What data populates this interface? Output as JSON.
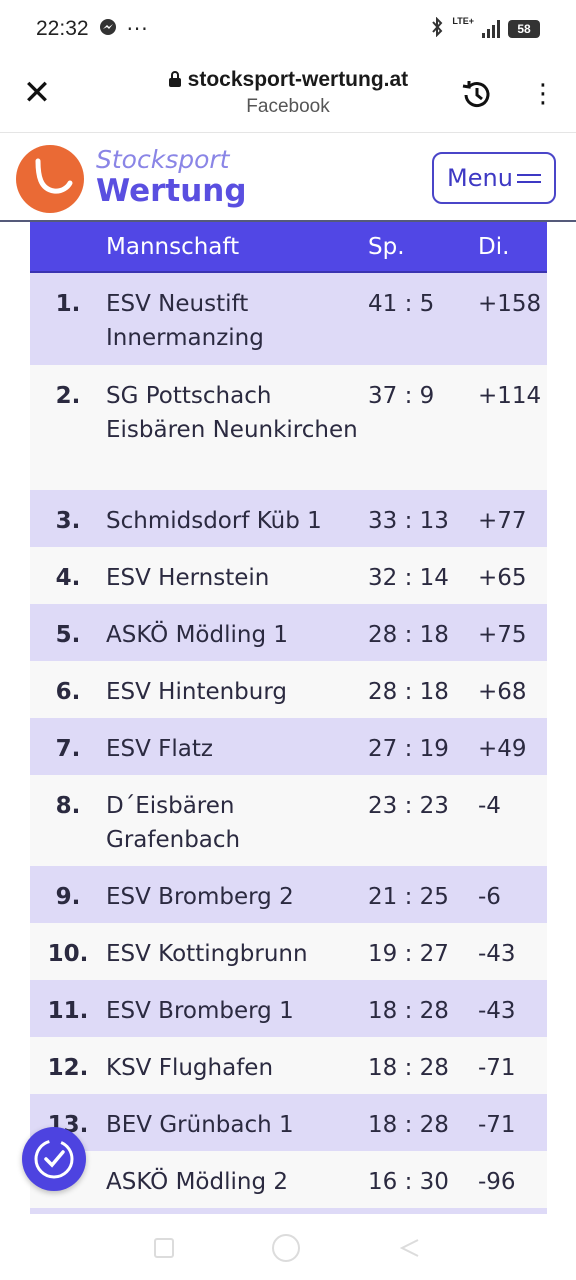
{
  "status_bar": {
    "time": "22:32",
    "notification_icons": [
      "messenger-icon",
      "more-notifications-icon"
    ],
    "network": "LTE+",
    "battery": "58"
  },
  "browser": {
    "url": "stocksport-wertung.at",
    "source": "Facebook"
  },
  "site": {
    "brand_line1": "Stocksport",
    "brand_line2": "Wertung",
    "menu_label": "Menu",
    "colors": {
      "accent": "#5147e5",
      "logo_orange": "#ea6a35",
      "row_tint": "#dedaf7"
    }
  },
  "table": {
    "headers": {
      "rank": "",
      "team": "Mannschaft",
      "games": "Sp.",
      "diff": "Di."
    },
    "rows": [
      {
        "rank": "1.",
        "team": "ESV Neustift Innermanzing",
        "games": "41 : 5",
        "diff": "+158"
      },
      {
        "rank": "2.",
        "team": "SG Pottschach Eisbären Neunkirchen",
        "games": "37 : 9",
        "diff": "+114"
      },
      {
        "rank": "3.",
        "team": "Schmidsdorf Küb 1",
        "games": "33 : 13",
        "diff": "+77"
      },
      {
        "rank": "4.",
        "team": "ESV Hernstein",
        "games": "32 : 14",
        "diff": "+65"
      },
      {
        "rank": "5.",
        "team": "ASKÖ Mödling 1",
        "games": "28 : 18",
        "diff": "+75"
      },
      {
        "rank": "6.",
        "team": "ESV Hintenburg",
        "games": "28 : 18",
        "diff": "+68"
      },
      {
        "rank": "7.",
        "team": "ESV Flatz",
        "games": "27 : 19",
        "diff": "+49"
      },
      {
        "rank": "8.",
        "team": "D´Eisbären Grafenbach",
        "games": "23 : 23",
        "diff": "-4"
      },
      {
        "rank": "9.",
        "team": "ESV Bromberg 2",
        "games": "21 : 25",
        "diff": "-6"
      },
      {
        "rank": "10.",
        "team": "ESV Kottingbrunn",
        "games": "19 : 27",
        "diff": "-43"
      },
      {
        "rank": "11.",
        "team": "ESV Bromberg 1",
        "games": "18 : 28",
        "diff": "-43"
      },
      {
        "rank": "12.",
        "team": "KSV Flughafen",
        "games": "18 : 28",
        "diff": "-71"
      },
      {
        "rank": "13.",
        "team": "BEV Grünbach 1",
        "games": "18 : 28",
        "diff": "-71"
      },
      {
        "rank": "",
        "team": "ASKÖ Mödling 2",
        "games": "16 : 30",
        "diff": "-96"
      }
    ]
  }
}
